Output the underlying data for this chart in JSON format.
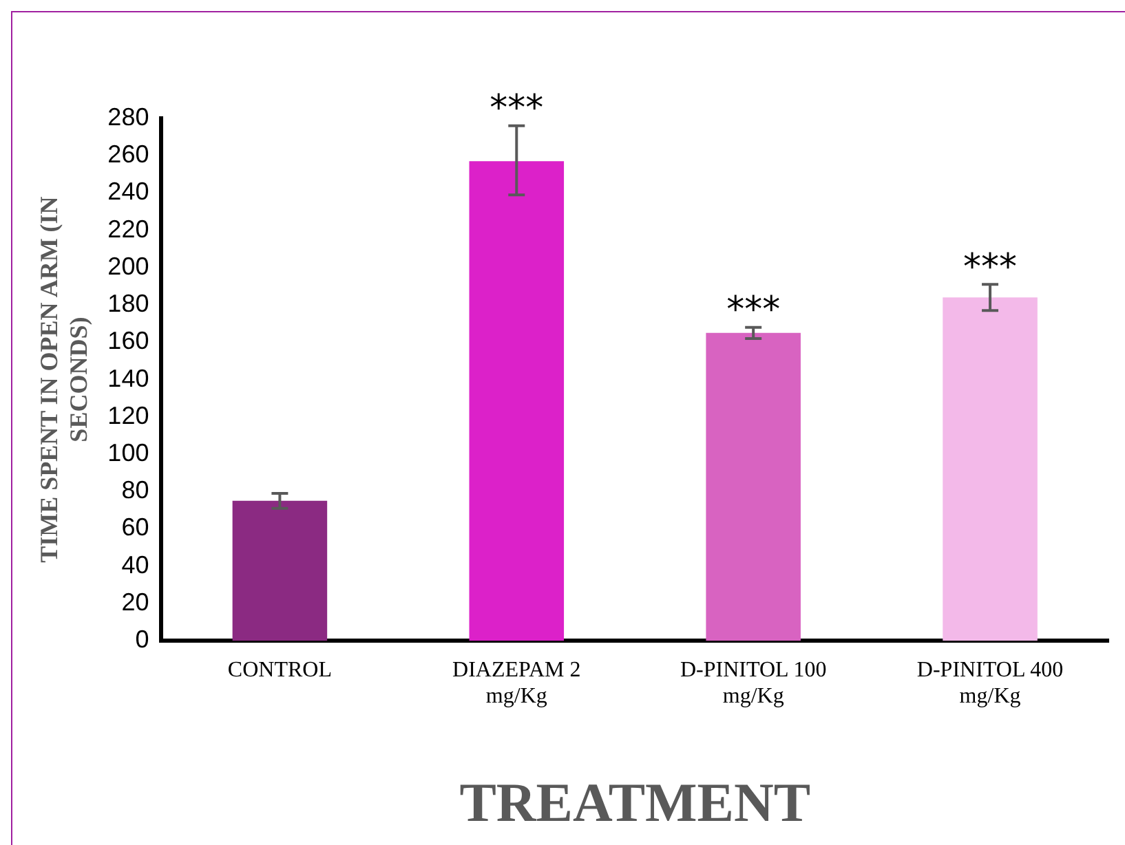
{
  "chart_data": {
    "type": "bar",
    "xlabel": "TREATMENT",
    "ylabel": "TIME SPENT IN OPEN ARM (IN SECONDS)",
    "categories": [
      "CONTROL",
      "DIAZEPAM 2 mg/Kg",
      "D-PINITOL 100 mg/Kg",
      "D-PINITOL 400 mg/Kg"
    ],
    "values": [
      75,
      257,
      165,
      184
    ],
    "errors": [
      4,
      [
        239,
        276
      ],
      3,
      7
    ],
    "colors": [
      "#8b2a82",
      "#dc21c9",
      "#d863c1",
      "#f3b9e9"
    ],
    "ylim": [
      0,
      280
    ],
    "yticks": [
      0,
      20,
      40,
      60,
      80,
      100,
      120,
      140,
      160,
      180,
      200,
      220,
      240,
      260,
      280
    ],
    "grid": false,
    "legend": false,
    "annotations": [
      {
        "text": "***",
        "x": "DIAZEPAM 2 mg/Kg",
        "y": 276
      },
      {
        "text": "***",
        "x": "D-PINITOL 100 mg/Kg",
        "y": 168
      },
      {
        "text": "***",
        "x": "D-PINITOL 400 mg/Kg",
        "y": 191
      }
    ]
  }
}
